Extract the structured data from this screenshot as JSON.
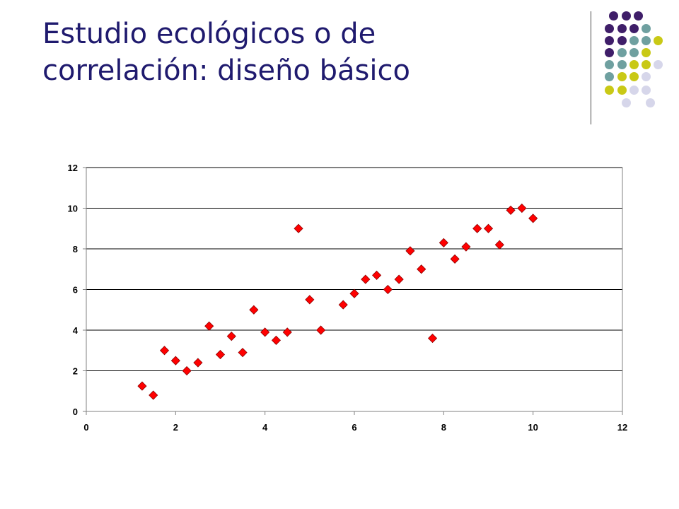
{
  "slide": {
    "title_line1": "Estudio ecológicos o de",
    "title_line2": "correlación: diseño básico"
  },
  "theme": {
    "title_color": "#1f1a6e",
    "decor_colors": {
      "purple": "#3f1e69",
      "teal": "#6fa0a0",
      "lime": "#c9c916",
      "lavender": "#d6d6ea"
    },
    "marker_color": "#ff0000",
    "marker_outline": "#8b0000"
  },
  "chart_data": {
    "type": "scatter",
    "title": "",
    "xlabel": "",
    "ylabel": "",
    "xlim": [
      0,
      12
    ],
    "ylim": [
      0,
      12
    ],
    "xticks": [
      0,
      2,
      4,
      6,
      8,
      10,
      12
    ],
    "yticks": [
      0,
      2,
      4,
      6,
      8,
      10,
      12
    ],
    "grid": "horizontal",
    "legend": "none",
    "marker": "diamond",
    "points": [
      [
        1.25,
        1.25
      ],
      [
        1.5,
        0.8
      ],
      [
        1.75,
        3.0
      ],
      [
        2.0,
        2.5
      ],
      [
        2.25,
        2.0
      ],
      [
        2.5,
        2.4
      ],
      [
        2.75,
        4.2
      ],
      [
        3.0,
        2.8
      ],
      [
        3.25,
        3.7
      ],
      [
        3.5,
        2.9
      ],
      [
        3.75,
        5.0
      ],
      [
        4.0,
        3.9
      ],
      [
        4.25,
        3.5
      ],
      [
        4.5,
        3.9
      ],
      [
        4.75,
        9.0
      ],
      [
        5.0,
        5.5
      ],
      [
        5.25,
        4.0
      ],
      [
        5.75,
        5.25
      ],
      [
        6.0,
        5.8
      ],
      [
        6.25,
        6.5
      ],
      [
        6.5,
        6.7
      ],
      [
        6.75,
        6.0
      ],
      [
        7.0,
        6.5
      ],
      [
        7.25,
        7.9
      ],
      [
        7.5,
        7.0
      ],
      [
        7.75,
        3.6
      ],
      [
        8.0,
        8.3
      ],
      [
        8.25,
        7.5
      ],
      [
        8.5,
        8.1
      ],
      [
        8.75,
        9.0
      ],
      [
        9.0,
        9.0
      ],
      [
        9.25,
        8.2
      ],
      [
        9.5,
        9.9
      ],
      [
        9.75,
        10.0
      ],
      [
        10.0,
        9.5
      ]
    ]
  }
}
